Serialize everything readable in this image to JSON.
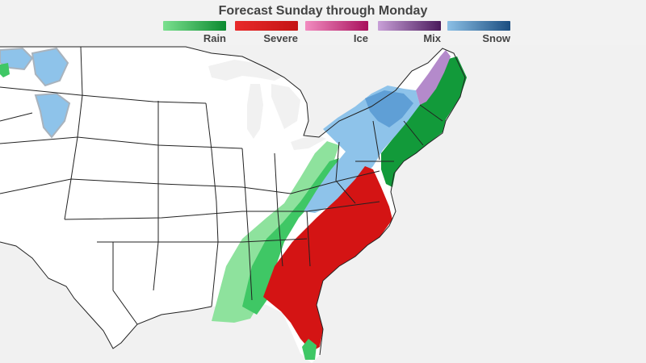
{
  "title": "Forecast Sunday through Monday",
  "legend": [
    {
      "label": "Rain",
      "from": "#7be08f",
      "to": "#0b8a2f"
    },
    {
      "label": "Severe",
      "from": "#e82a2a",
      "to": "#c41414"
    },
    {
      "label": "Ice",
      "from": "#f28cc0",
      "to": "#a8105c"
    },
    {
      "label": "Mix",
      "from": "#c9a0d8",
      "to": "#4a1a5c"
    },
    {
      "label": "Snow",
      "from": "#8cc0e6",
      "to": "#1a4d80"
    }
  ],
  "colors": {
    "land": "#ffffff",
    "water": "#f1f1f1",
    "border": "#222222",
    "rain_light": "#8ee29d",
    "rain": "#4ccf6a",
    "rain_dark": "#129a3a",
    "severe": "#d41414",
    "snow": "#8ec3ea",
    "snow_dark": "#5f9fd6",
    "mix": "#b48acb",
    "storm_gray": "#a9b3bd"
  }
}
